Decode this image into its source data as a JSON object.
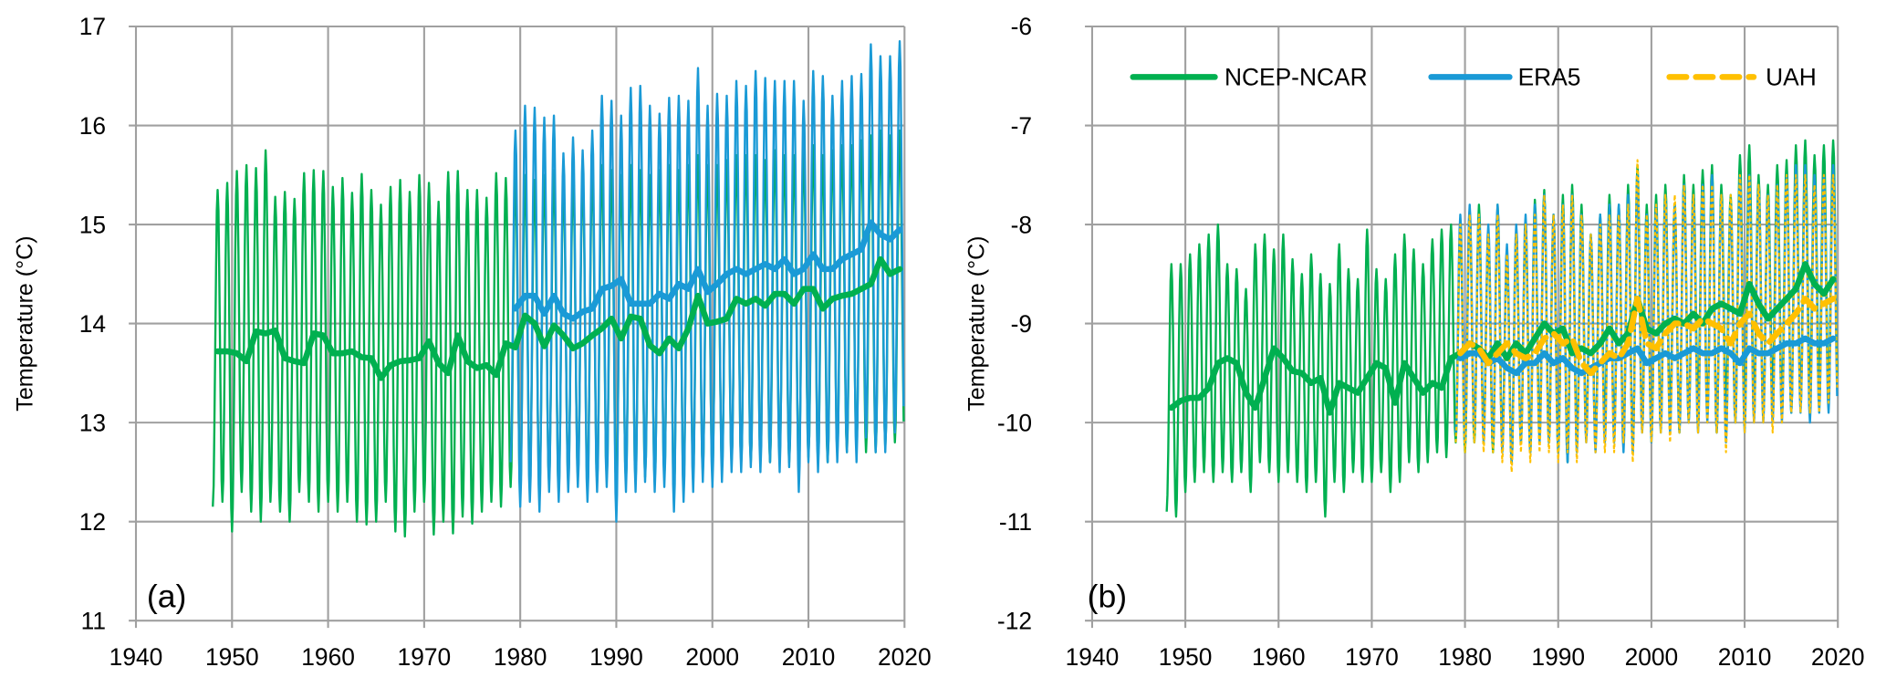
{
  "colors": {
    "ncep": "#00b050",
    "era5": "#1a9ad6",
    "uah": "#ffc000",
    "grid": "#a0a0a0"
  },
  "legend": [
    {
      "name": "NCEP-NCAR",
      "style": "solid",
      "color_key": "ncep"
    },
    {
      "name": "ERA5",
      "style": "solid",
      "color_key": "era5"
    },
    {
      "name": "UAH",
      "style": "dashed",
      "color_key": "uah"
    }
  ],
  "chart_data": [
    {
      "type": "line",
      "panel_label": "(a)",
      "title": "",
      "xlabel": "",
      "ylabel": "Temperature (°C)",
      "xlim": [
        1940,
        2020
      ],
      "ylim": [
        11,
        17
      ],
      "xticks": [
        1940,
        1950,
        1960,
        1970,
        1980,
        1990,
        2000,
        2010,
        2020
      ],
      "yticks": [
        11,
        12,
        13,
        14,
        15,
        16,
        17
      ],
      "grid": true,
      "legend": "none",
      "series": [
        {
          "name": "NCEP-NCAR",
          "color_key": "ncep",
          "start_year": 1948,
          "annual_peak": [
            15.35,
            15.42,
            15.54,
            15.6,
            15.57,
            15.75,
            15.28,
            15.33,
            15.26,
            15.52,
            15.55,
            15.54,
            15.38,
            15.47,
            15.32,
            15.51,
            15.35,
            15.2,
            15.38,
            15.45,
            15.33,
            15.5,
            15.42,
            15.23,
            15.53,
            15.54,
            15.35,
            15.35,
            15.27,
            15.52,
            15.47,
            15.5,
            15.5,
            15.45,
            15.5,
            15.55,
            15.45,
            15.5,
            15.5,
            15.55,
            15.6,
            15.55,
            15.5,
            15.6,
            15.55,
            15.5,
            15.55,
            15.6,
            15.55,
            15.6,
            15.7,
            15.6,
            15.6,
            15.65,
            15.7,
            15.7,
            15.7,
            15.65,
            15.75,
            15.7,
            15.7,
            15.75,
            15.8,
            15.7,
            15.75,
            15.8,
            15.8,
            15.85,
            15.9,
            15.95,
            15.9,
            15.95
          ],
          "annual_trough": [
            12.15,
            12.2,
            11.9,
            12.3,
            12.1,
            12.0,
            12.2,
            12.1,
            12.0,
            12.3,
            12.2,
            12.1,
            12.2,
            12.1,
            12.2,
            12.0,
            11.97,
            12.0,
            12.2,
            11.9,
            11.85,
            12.1,
            12.2,
            11.87,
            12.0,
            11.88,
            12.05,
            11.98,
            12.1,
            12.2,
            12.15,
            12.35,
            12.3,
            12.4,
            12.3,
            12.4,
            12.3,
            12.4,
            12.45,
            12.35,
            12.4,
            12.45,
            12.3,
            12.4,
            12.4,
            12.45,
            12.4,
            12.45,
            12.3,
            12.4,
            12.5,
            12.5,
            12.5,
            12.55,
            12.6,
            12.6,
            12.6,
            12.65,
            12.6,
            12.65,
            12.6,
            12.5,
            12.65,
            12.6,
            12.6,
            12.7,
            12.7,
            12.75,
            12.7,
            12.7,
            12.75,
            12.8
          ],
          "smoothed": [
            13.72,
            13.72,
            13.7,
            13.62,
            13.92,
            13.9,
            13.93,
            13.65,
            13.62,
            13.6,
            13.9,
            13.88,
            13.7,
            13.7,
            13.72,
            13.66,
            13.65,
            13.45,
            13.58,
            13.62,
            13.63,
            13.65,
            13.82,
            13.6,
            13.5,
            13.88,
            13.62,
            13.55,
            13.58,
            13.48,
            13.8,
            13.76,
            14.08,
            14.0,
            13.77,
            13.98,
            13.88,
            13.75,
            13.8,
            13.88,
            13.95,
            14.05,
            13.85,
            14.07,
            14.05,
            13.78,
            13.7,
            13.85,
            13.75,
            13.95,
            14.28,
            14.0,
            14.02,
            14.05,
            14.25,
            14.2,
            14.25,
            14.18,
            14.3,
            14.3,
            14.2,
            14.35,
            14.35,
            14.15,
            14.25,
            14.28,
            14.3,
            14.35,
            14.4,
            14.65,
            14.5,
            14.55
          ]
        },
        {
          "name": "ERA5",
          "color_key": "era5",
          "start_year": 1979,
          "annual_peak": [
            15.95,
            16.2,
            16.18,
            16.08,
            16.1,
            15.72,
            15.88,
            15.75,
            15.95,
            16.3,
            16.25,
            16.1,
            16.38,
            16.4,
            16.2,
            16.12,
            16.28,
            16.3,
            16.25,
            16.58,
            16.2,
            16.32,
            16.3,
            16.45,
            16.4,
            16.55,
            16.48,
            16.45,
            16.45,
            16.45,
            16.25,
            16.55,
            16.5,
            16.3,
            16.45,
            16.5,
            16.52,
            16.82,
            16.7,
            16.7,
            16.85
          ],
          "annual_trough": [
            12.6,
            12.15,
            12.2,
            12.1,
            12.3,
            12.2,
            12.3,
            12.35,
            12.2,
            12.3,
            12.35,
            12.0,
            12.3,
            12.3,
            12.4,
            12.3,
            12.35,
            12.1,
            12.2,
            12.3,
            12.4,
            12.35,
            12.4,
            12.5,
            12.5,
            12.55,
            12.5,
            12.6,
            12.5,
            12.55,
            12.3,
            12.6,
            12.5,
            12.6,
            12.6,
            12.7,
            12.6,
            12.85,
            12.7,
            12.7,
            12.9
          ],
          "smoothed": [
            14.15,
            14.28,
            14.28,
            14.1,
            14.28,
            14.1,
            14.05,
            14.12,
            14.15,
            14.35,
            14.38,
            14.45,
            14.2,
            14.2,
            14.2,
            14.3,
            14.25,
            14.4,
            14.35,
            14.55,
            14.32,
            14.4,
            14.5,
            14.55,
            14.5,
            14.55,
            14.6,
            14.55,
            14.65,
            14.5,
            14.55,
            14.7,
            14.55,
            14.55,
            14.65,
            14.7,
            14.75,
            15.02,
            14.9,
            14.85,
            14.95
          ]
        }
      ]
    },
    {
      "type": "line",
      "panel_label": "(b)",
      "title": "",
      "xlabel": "",
      "ylabel": "Temperature (°C)",
      "xlim": [
        1940,
        2020
      ],
      "ylim": [
        -12,
        -6
      ],
      "xticks": [
        1940,
        1950,
        1960,
        1970,
        1980,
        1990,
        2000,
        2010,
        2020
      ],
      "yticks": [
        -12,
        -11,
        -10,
        -9,
        -8,
        -7,
        -6
      ],
      "grid": true,
      "legend": "top",
      "series": [
        {
          "name": "NCEP-NCAR",
          "color_key": "ncep",
          "start_year": 1948,
          "annual_peak": [
            -8.4,
            -8.4,
            -8.3,
            -8.2,
            -8.1,
            -8.0,
            -8.4,
            -8.45,
            -8.65,
            -8.2,
            -8.1,
            -8.25,
            -8.1,
            -8.35,
            -8.5,
            -8.3,
            -8.5,
            -8.6,
            -8.2,
            -8.45,
            -8.55,
            -8.05,
            -8.45,
            -8.55,
            -8.3,
            -8.1,
            -8.25,
            -8.4,
            -8.15,
            -8.05,
            -8.0,
            -8.0,
            -7.85,
            -7.8,
            -8.1,
            -7.8,
            -8.3,
            -8.1,
            -8.0,
            -7.75,
            -7.65,
            -7.9,
            -7.7,
            -7.6,
            -7.8,
            -8.1,
            -7.9,
            -7.7,
            -7.8,
            -7.6,
            -7.4,
            -7.8,
            -7.7,
            -7.6,
            -7.8,
            -7.5,
            -7.6,
            -7.45,
            -7.4,
            -7.6,
            -7.7,
            -7.3,
            -7.2,
            -7.5,
            -7.6,
            -7.4,
            -7.35,
            -7.2,
            -7.15,
            -7.3,
            -7.2,
            -7.15
          ],
          "annual_trough": [
            -10.9,
            -10.95,
            -10.7,
            -10.6,
            -10.5,
            -10.6,
            -10.5,
            -10.6,
            -10.5,
            -10.7,
            -10.4,
            -10.5,
            -10.6,
            -10.5,
            -10.6,
            -10.7,
            -10.6,
            -10.95,
            -10.6,
            -10.7,
            -10.5,
            -10.6,
            -10.6,
            -10.5,
            -10.7,
            -10.6,
            -10.4,
            -10.5,
            -10.4,
            -10.3,
            -10.35,
            -10.2,
            -10.3,
            -10.2,
            -10.1,
            -10.3,
            -10.2,
            -10.4,
            -10.2,
            -10.3,
            -10.1,
            -10.2,
            -10.3,
            -10.4,
            -10.2,
            -10.1,
            -10.2,
            -10.0,
            -10.1,
            -10.2,
            -10.3,
            -10.0,
            -10.1,
            -10.0,
            -9.9,
            -10.1,
            -10.0,
            -9.8,
            -9.9,
            -10.1,
            -9.8,
            -10.0,
            -9.9,
            -9.8,
            -9.9,
            -9.7,
            -9.8,
            -9.9,
            -9.8,
            -9.7,
            -9.6,
            -9.7
          ],
          "smoothed": [
            -9.85,
            -9.78,
            -9.75,
            -9.75,
            -9.65,
            -9.4,
            -9.35,
            -9.4,
            -9.7,
            -9.85,
            -9.55,
            -9.25,
            -9.35,
            -9.48,
            -9.5,
            -9.6,
            -9.55,
            -9.9,
            -9.6,
            -9.65,
            -9.7,
            -9.55,
            -9.4,
            -9.45,
            -9.8,
            -9.4,
            -9.55,
            -9.7,
            -9.6,
            -9.65,
            -9.35,
            -9.3,
            -9.2,
            -9.25,
            -9.35,
            -9.2,
            -9.35,
            -9.2,
            -9.3,
            -9.15,
            -9.0,
            -9.1,
            -9.05,
            -9.3,
            -9.25,
            -9.3,
            -9.2,
            -9.05,
            -9.2,
            -9.1,
            -8.75,
            -9.05,
            -9.1,
            -9.0,
            -8.95,
            -9.0,
            -8.9,
            -9.0,
            -8.85,
            -8.8,
            -8.85,
            -8.9,
            -8.6,
            -8.8,
            -8.95,
            -8.85,
            -8.75,
            -8.65,
            -8.4,
            -8.6,
            -8.7,
            -8.55
          ]
        },
        {
          "name": "ERA5",
          "color_key": "era5",
          "start_year": 1979,
          "annual_peak": [
            -7.9,
            -7.8,
            -7.9,
            -8.0,
            -7.8,
            -8.2,
            -8.0,
            -7.9,
            -7.8,
            -7.7,
            -7.9,
            -7.8,
            -7.7,
            -7.9,
            -8.1,
            -7.9,
            -7.8,
            -7.8,
            -7.7,
            -7.5,
            -7.9,
            -7.8,
            -7.7,
            -7.8,
            -7.6,
            -7.7,
            -7.6,
            -7.5,
            -7.7,
            -7.8,
            -7.5,
            -7.5,
            -7.6,
            -7.7,
            -7.6,
            -7.5,
            -7.4,
            -7.4,
            -7.5,
            -7.5,
            -7.4
          ],
          "annual_trough": [
            -10.1,
            -10.2,
            -10.1,
            -10.2,
            -10.2,
            -10.3,
            -10.4,
            -10.2,
            -10.3,
            -10.2,
            -10.2,
            -10.3,
            -10.4,
            -10.3,
            -10.2,
            -10.3,
            -10.2,
            -10.2,
            -10.3,
            -10.3,
            -10.1,
            -10.2,
            -10.1,
            -10.1,
            -10.1,
            -10.0,
            -10.1,
            -10.0,
            -10.1,
            -10.2,
            -10.0,
            -10.1,
            -10.0,
            -10.0,
            -10.0,
            -10.0,
            -9.9,
            -9.9,
            -10.0,
            -9.9,
            -9.9
          ],
          "smoothed": [
            -9.35,
            -9.3,
            -9.3,
            -9.4,
            -9.35,
            -9.45,
            -9.5,
            -9.4,
            -9.4,
            -9.3,
            -9.4,
            -9.35,
            -9.45,
            -9.5,
            -9.45,
            -9.4,
            -9.35,
            -9.35,
            -9.3,
            -9.25,
            -9.4,
            -9.35,
            -9.3,
            -9.35,
            -9.3,
            -9.25,
            -9.3,
            -9.3,
            -9.25,
            -9.3,
            -9.4,
            -9.25,
            -9.3,
            -9.3,
            -9.25,
            -9.2,
            -9.2,
            -9.15,
            -9.2,
            -9.2,
            -9.15
          ]
        },
        {
          "name": "UAH",
          "color_key": "uah",
          "start_year": 1979,
          "dashed": true,
          "annual_peak": [
            -8.0,
            -7.9,
            -7.9,
            -8.1,
            -7.9,
            -8.3,
            -8.1,
            -8.0,
            -7.9,
            -7.7,
            -7.9,
            -7.8,
            -7.7,
            -7.9,
            -8.1,
            -8.0,
            -7.9,
            -7.9,
            -7.8,
            -7.35,
            -7.9,
            -7.8,
            -7.7,
            -7.7,
            -7.6,
            -7.7,
            -7.6,
            -7.6,
            -7.7,
            -7.7,
            -7.5,
            -7.5,
            -7.6,
            -7.7,
            -7.6,
            -7.5,
            -7.5,
            -7.5,
            -7.6,
            -7.5,
            -7.5
          ],
          "annual_trough": [
            -10.2,
            -10.3,
            -10.2,
            -10.3,
            -10.3,
            -10.4,
            -10.5,
            -10.3,
            -10.4,
            -10.3,
            -10.3,
            -10.4,
            -10.3,
            -10.4,
            -10.2,
            -10.3,
            -10.3,
            -10.3,
            -10.2,
            -10.4,
            -10.1,
            -10.2,
            -10.1,
            -10.2,
            -10.1,
            -10.0,
            -10.1,
            -10.0,
            -10.1,
            -10.3,
            -10.0,
            -10.1,
            -10.0,
            -10.0,
            -10.1,
            -10.0,
            -9.9,
            -9.9,
            -9.9,
            -9.9,
            -9.8
          ],
          "smoothed": [
            -9.3,
            -9.2,
            -9.25,
            -9.4,
            -9.3,
            -9.2,
            -9.3,
            -9.35,
            -9.3,
            -9.15,
            -9.1,
            -9.2,
            -9.15,
            -9.4,
            -9.5,
            -9.4,
            -9.3,
            -9.35,
            -9.2,
            -8.75,
            -9.2,
            -9.25,
            -9.1,
            -9.0,
            -9.0,
            -9.05,
            -8.95,
            -9.0,
            -9.05,
            -9.2,
            -9.0,
            -8.9,
            -9.1,
            -9.2,
            -9.1,
            -9.0,
            -8.9,
            -8.75,
            -8.85,
            -8.8,
            -8.75
          ]
        }
      ]
    }
  ]
}
